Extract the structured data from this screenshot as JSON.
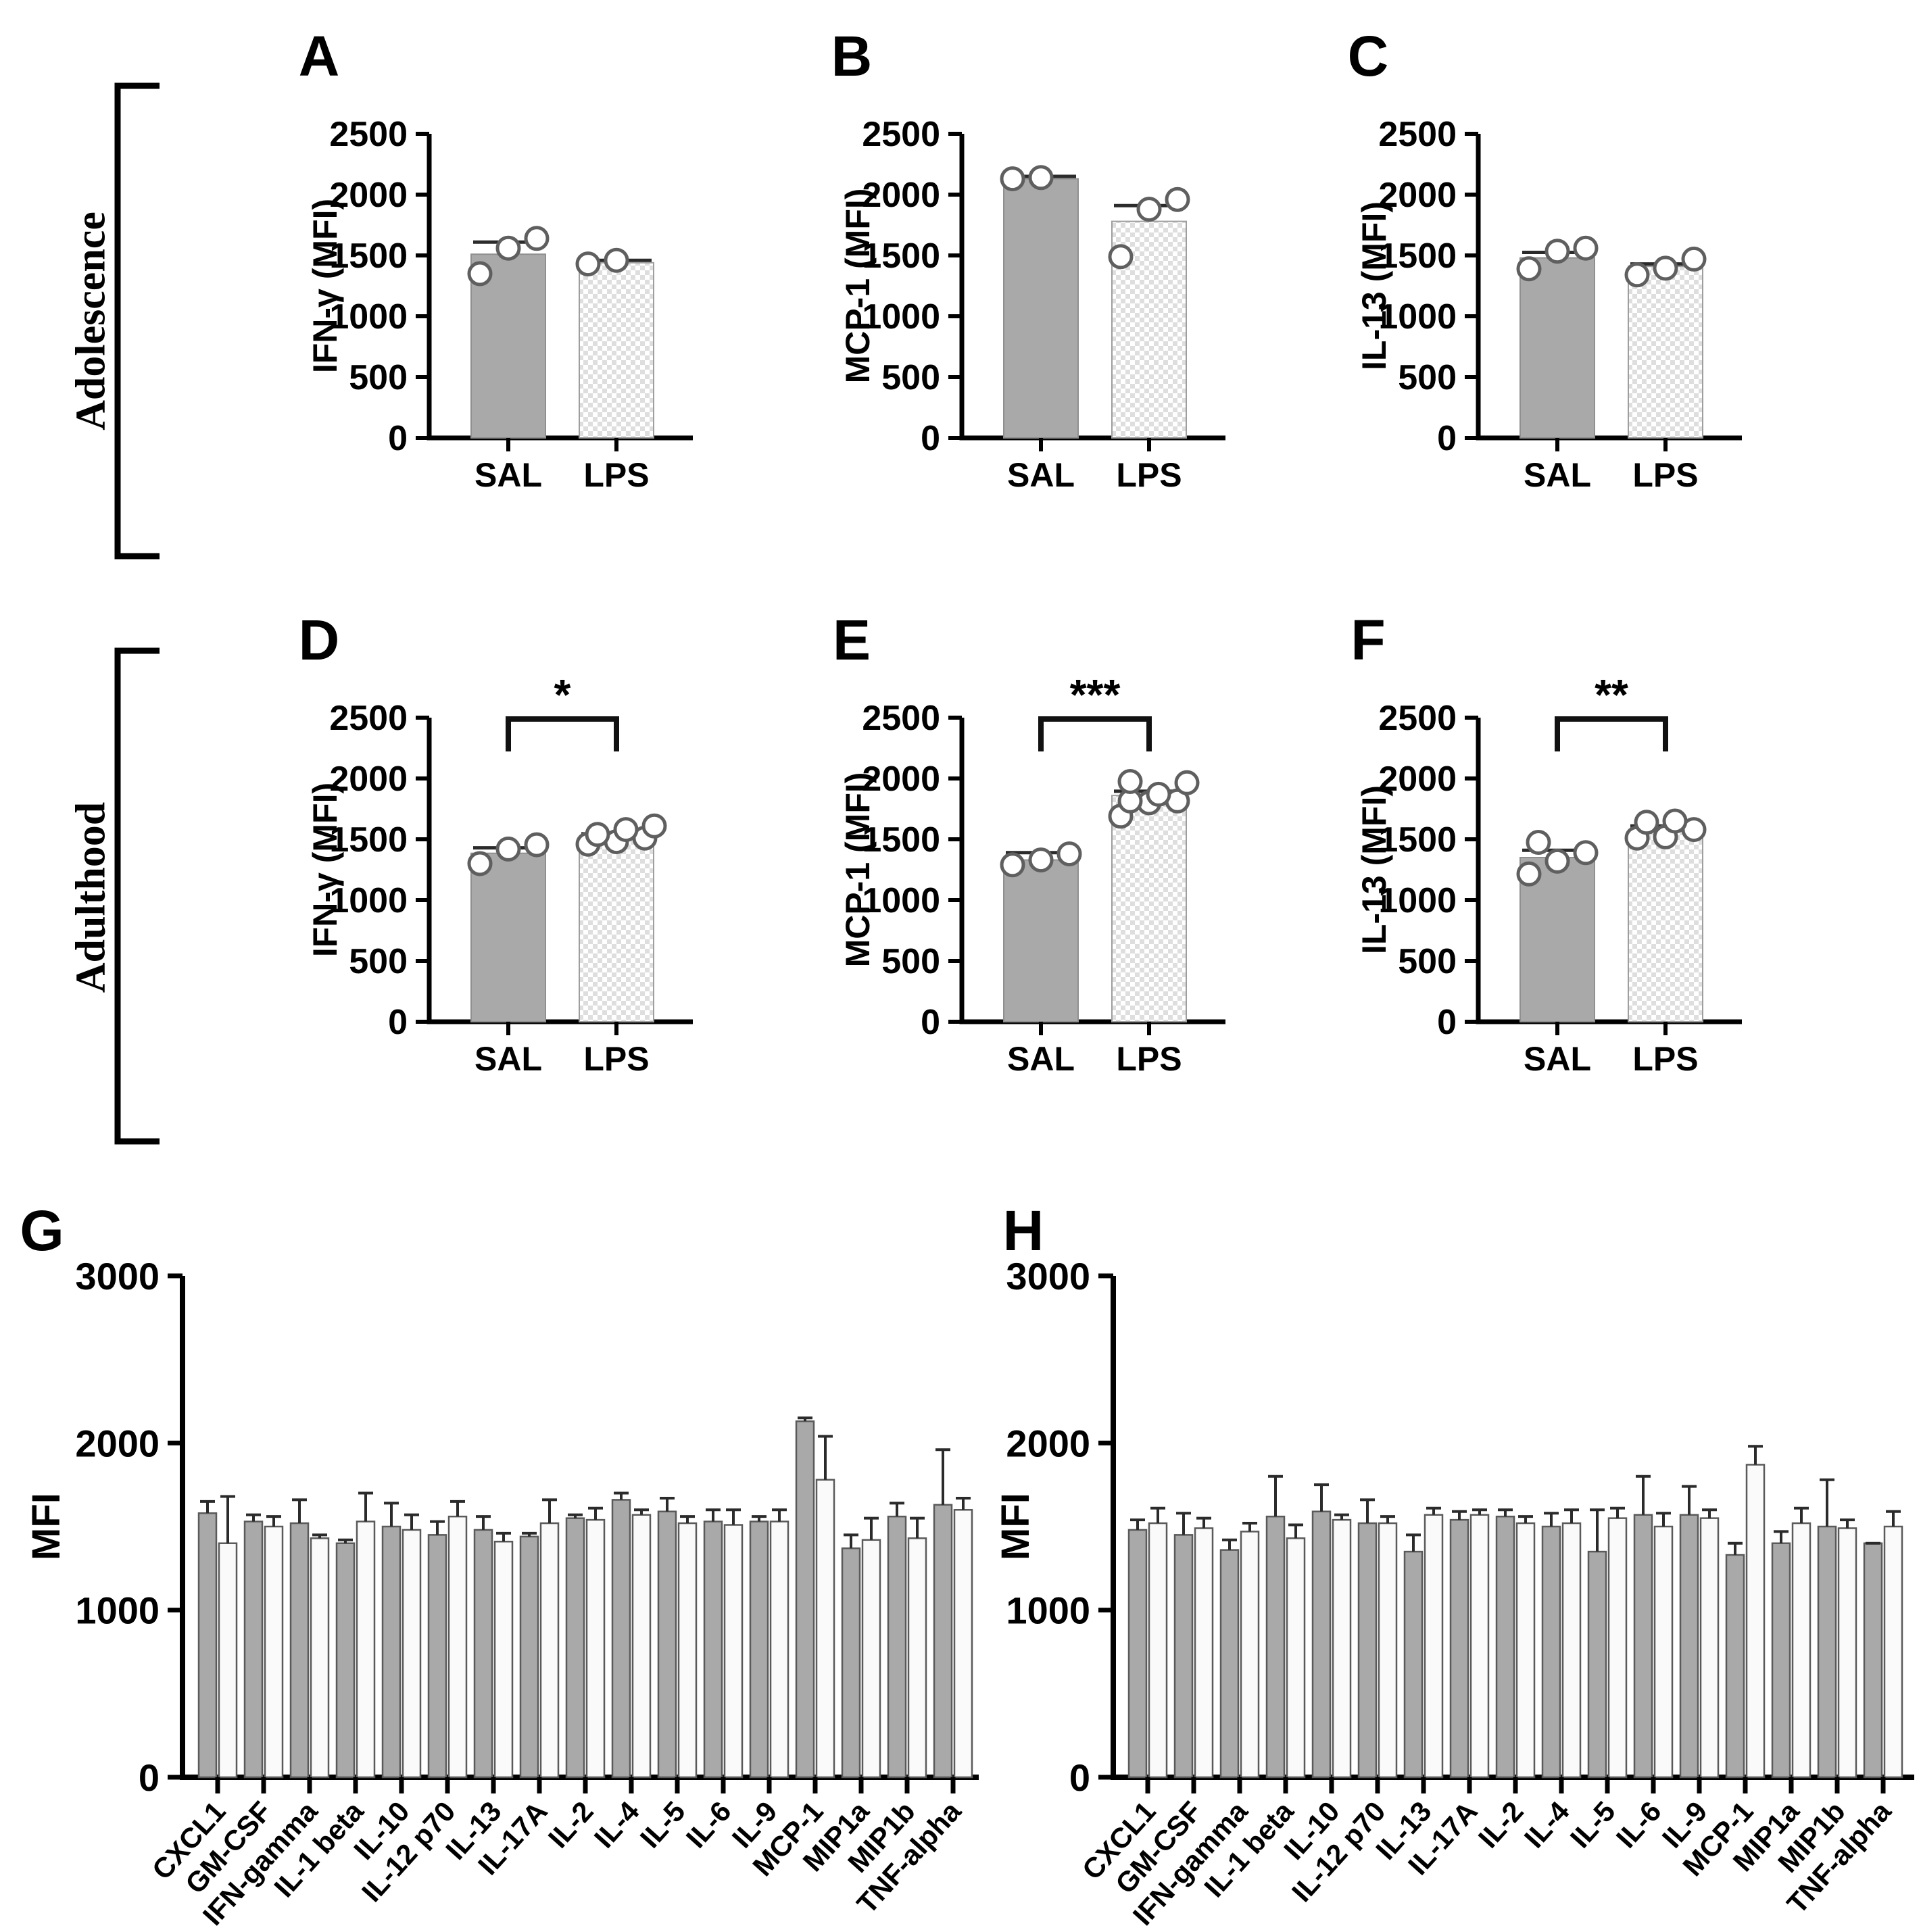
{
  "row_labels": {
    "row1": "Adolescence",
    "row2": "Adulthood"
  },
  "colors": {
    "background": "#ffffff",
    "axis": "#000000",
    "sal_fill": "#a9a9a9",
    "sal_outline": "#8f8f8f",
    "lps_checker": "#dedede",
    "lps_outline": "#9e9e9e",
    "lps_fill_big": "#fafafa",
    "big_bar_outline": "#5a5a5a",
    "point_fill": "#ffffff",
    "point_stroke": "#5f5f5f",
    "error_bar": "#2b2b2b",
    "text": "#000000"
  },
  "chart_data": [
    {
      "id": "A",
      "panel_label": "A",
      "type": "bar",
      "row": "Adolescence",
      "ylabel": "IFN-γ (MFI)",
      "ylim": [
        0,
        2500
      ],
      "yticks": [
        0,
        500,
        1000,
        1500,
        2000,
        2500
      ],
      "categories": [
        "SAL",
        "LPS"
      ],
      "series": [
        {
          "name": "SAL",
          "style": "solid",
          "value": 1510,
          "err_high": 1610,
          "points": [
            1350,
            1560,
            1640
          ]
        },
        {
          "name": "LPS",
          "style": "checker",
          "value": 1440,
          "err_high": 1460,
          "points": [
            1430,
            1460
          ]
        }
      ],
      "significance": null
    },
    {
      "id": "B",
      "panel_label": "B",
      "type": "bar",
      "row": "Adolescence",
      "ylabel": "MCP-1 (MFI)",
      "ylim": [
        0,
        2500
      ],
      "yticks": [
        0,
        500,
        1000,
        1500,
        2000,
        2500
      ],
      "categories": [
        "SAL",
        "LPS"
      ],
      "series": [
        {
          "name": "SAL",
          "style": "solid",
          "value": 2130,
          "err_high": 2150,
          "points": [
            2130,
            2140
          ]
        },
        {
          "name": "LPS",
          "style": "checker",
          "value": 1780,
          "err_high": 1910,
          "points": [
            1490,
            1880,
            1960
          ]
        }
      ],
      "significance": null
    },
    {
      "id": "C",
      "panel_label": "C",
      "type": "bar",
      "row": "Adolescence",
      "ylabel": "IL-13 (MFI)",
      "ylim": [
        0,
        2500
      ],
      "yticks": [
        0,
        500,
        1000,
        1500,
        2000,
        2500
      ],
      "categories": [
        "SAL",
        "LPS"
      ],
      "series": [
        {
          "name": "SAL",
          "style": "solid",
          "value": 1480,
          "err_high": 1525,
          "points": [
            1390,
            1535,
            1560
          ]
        },
        {
          "name": "LPS",
          "style": "checker",
          "value": 1410,
          "err_high": 1430,
          "points": [
            1340,
            1395,
            1470
          ]
        }
      ],
      "significance": null
    },
    {
      "id": "D",
      "panel_label": "D",
      "type": "bar",
      "row": "Adulthood",
      "ylabel": "IFN-γ (MFI)",
      "ylim": [
        0,
        2500
      ],
      "yticks": [
        0,
        500,
        1000,
        1500,
        2000,
        2500
      ],
      "categories": [
        "SAL",
        "LPS"
      ],
      "series": [
        {
          "name": "SAL",
          "style": "solid",
          "value": 1385,
          "err_high": 1430,
          "points": [
            1300,
            1420,
            1455
          ]
        },
        {
          "name": "LPS",
          "style": "checker",
          "value": 1510,
          "err_high": 1545,
          "points": [
            1460,
            1480,
            1510,
            1540,
            1580,
            1610
          ]
        }
      ],
      "significance": "*"
    },
    {
      "id": "E",
      "panel_label": "E",
      "type": "bar",
      "row": "Adulthood",
      "ylabel": "MCP-1 (MFI)",
      "ylim": [
        0,
        2500
      ],
      "yticks": [
        0,
        500,
        1000,
        1500,
        2000,
        2500
      ],
      "categories": [
        "SAL",
        "LPS"
      ],
      "series": [
        {
          "name": "SAL",
          "style": "solid",
          "value": 1330,
          "err_high": 1390,
          "points": [
            1290,
            1330,
            1380
          ]
        },
        {
          "name": "LPS",
          "style": "checker",
          "value": 1860,
          "err_high": 1895,
          "points": [
            1690,
            1800,
            1815,
            1815,
            1870,
            1965,
            1975
          ]
        }
      ],
      "significance": "***"
    },
    {
      "id": "F",
      "panel_label": "F",
      "type": "bar",
      "row": "Adulthood",
      "ylabel": "IL-13 (MFI)",
      "ylim": [
        0,
        2500
      ],
      "yticks": [
        0,
        500,
        1000,
        1500,
        2000,
        2500
      ],
      "categories": [
        "SAL",
        "LPS"
      ],
      "series": [
        {
          "name": "SAL",
          "style": "solid",
          "value": 1350,
          "err_high": 1410,
          "points": [
            1215,
            1320,
            1390,
            1475
          ]
        },
        {
          "name": "LPS",
          "style": "checker",
          "value": 1565,
          "err_high": 1610,
          "points": [
            1510,
            1520,
            1580,
            1640,
            1650
          ]
        }
      ],
      "significance": "**"
    },
    {
      "id": "G",
      "panel_label": "G",
      "type": "grouped-bar",
      "row": "Adolescence",
      "ylabel": "MFI",
      "ylim": [
        0,
        3000
      ],
      "yticks": [
        0,
        1000,
        2000,
        3000
      ],
      "categories": [
        "CXCL1",
        "GM-CSF",
        "IFN-gamma",
        "IL-1 beta",
        "IL-10",
        "IL-12 p70",
        "IL-13",
        "IL-17A",
        "IL-2",
        "IL-4",
        "IL-5",
        "IL-6",
        "IL-9",
        "MCP-1",
        "MIP1a",
        "MIP1b",
        "TNF-alpha"
      ],
      "series": [
        {
          "name": "SAL",
          "style": "solid",
          "values": [
            1580,
            1530,
            1520,
            1400,
            1500,
            1450,
            1480,
            1440,
            1550,
            1660,
            1590,
            1530,
            1530,
            2130,
            1370,
            1560,
            1630
          ],
          "err_high": [
            1650,
            1570,
            1660,
            1420,
            1640,
            1530,
            1560,
            1460,
            1570,
            1700,
            1670,
            1600,
            1560,
            2150,
            1450,
            1640,
            1960
          ]
        },
        {
          "name": "LPS",
          "style": "open",
          "values": [
            1400,
            1500,
            1430,
            1530,
            1480,
            1560,
            1410,
            1520,
            1540,
            1570,
            1520,
            1510,
            1530,
            1780,
            1420,
            1430,
            1600
          ],
          "err_high": [
            1680,
            1560,
            1450,
            1700,
            1570,
            1650,
            1460,
            1660,
            1610,
            1600,
            1560,
            1600,
            1600,
            2040,
            1550,
            1550,
            1670
          ]
        }
      ]
    },
    {
      "id": "H",
      "panel_label": "H",
      "type": "grouped-bar",
      "row": "Adulthood",
      "ylabel": "MFI",
      "ylim": [
        0,
        3000
      ],
      "yticks": [
        0,
        1000,
        2000,
        3000
      ],
      "categories": [
        "CXCL1",
        "GM-CSF",
        "IFN-gamma",
        "IL-1 beta",
        "IL-10",
        "IL-12 p70",
        "IL-13",
        "IL-17A",
        "IL-2",
        "IL-4",
        "IL-5",
        "IL-6",
        "IL-9",
        "MCP-1",
        "MIP1a",
        "MIP1b",
        "TNF-alpha"
      ],
      "series": [
        {
          "name": "SAL",
          "style": "solid",
          "values": [
            1480,
            1450,
            1360,
            1560,
            1590,
            1520,
            1350,
            1540,
            1560,
            1500,
            1350,
            1570,
            1570,
            1330,
            1400,
            1500,
            1400
          ],
          "err_high": [
            1540,
            1580,
            1420,
            1800,
            1750,
            1660,
            1450,
            1590,
            1600,
            1580,
            1600,
            1800,
            1740,
            1400,
            1470,
            1780,
            1400
          ]
        },
        {
          "name": "LPS",
          "style": "open",
          "values": [
            1520,
            1490,
            1470,
            1430,
            1540,
            1520,
            1570,
            1570,
            1520,
            1520,
            1550,
            1500,
            1550,
            1870,
            1520,
            1490,
            1500
          ],
          "err_high": [
            1610,
            1550,
            1520,
            1510,
            1570,
            1560,
            1610,
            1600,
            1560,
            1600,
            1610,
            1580,
            1600,
            1980,
            1610,
            1540,
            1590
          ]
        }
      ]
    }
  ]
}
